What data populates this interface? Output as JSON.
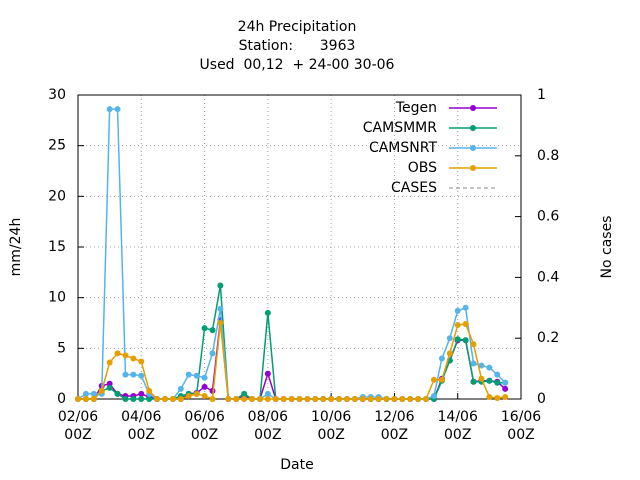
{
  "chart_data": {
    "type": "line",
    "title": [
      "24h Precipitation",
      "Station:      3963",
      "Used  00,12  + 24-00 30-06"
    ],
    "x_label": "Date",
    "y_label": "mm/24h",
    "y2_label": "No cases",
    "x": [
      "02/06\n00Z",
      "02/06\n06Z",
      "02/06\n12Z",
      "02/06\n18Z",
      "03/06\n00Z",
      "03/06\n06Z",
      "03/06\n12Z",
      "03/06\n18Z",
      "04/06\n00Z",
      "04/06\n06Z",
      "04/06\n12Z",
      "04/06\n18Z",
      "05/06\n00Z",
      "05/06\n06Z",
      "05/06\n12Z",
      "05/06\n18Z",
      "06/06\n00Z",
      "06/06\n06Z",
      "06/06\n12Z",
      "06/06\n18Z",
      "07/06\n00Z",
      "07/06\n06Z",
      "07/06\n12Z",
      "07/06\n18Z",
      "08/06\n00Z",
      "08/06\n06Z",
      "08/06\n12Z",
      "08/06\n18Z",
      "09/06\n00Z",
      "09/06\n06Z",
      "09/06\n12Z",
      "09/06\n18Z",
      "10/06\n00Z",
      "10/06\n06Z",
      "10/06\n12Z",
      "10/06\n18Z",
      "11/06\n00Z",
      "11/06\n06Z",
      "11/06\n12Z",
      "11/06\n18Z",
      "12/06\n00Z",
      "12/06\n06Z",
      "12/06\n12Z",
      "12/06\n18Z",
      "13/06\n00Z",
      "13/06\n06Z",
      "13/06\n12Z",
      "13/06\n18Z",
      "14/06\n00Z",
      "14/06\n06Z",
      "14/06\n12Z",
      "14/06\n18Z",
      "15/06\n00Z",
      "15/06\n06Z",
      "15/06\n12Z"
    ],
    "series": [
      {
        "name": "Tegen",
        "color": "#9400d3",
        "values": [
          0,
          0,
          0,
          1.3,
          1.5,
          0.5,
          0.3,
          0.3,
          0.5,
          0.2,
          0,
          0,
          0,
          0,
          0.5,
          0.6,
          1.2,
          0.8,
          7.8,
          0,
          0,
          0.3,
          0,
          0,
          2.5,
          0,
          0,
          0,
          0,
          0,
          0,
          0,
          0,
          0,
          0,
          0,
          0,
          0,
          0,
          0,
          0,
          0,
          0,
          0,
          0,
          0,
          2,
          3.8,
          5.8,
          5.8,
          1.7,
          1.8,
          1.8,
          1.7,
          1
        ]
      },
      {
        "name": "CAMSMMR",
        "color": "#009e73",
        "values": [
          0,
          0,
          0,
          0.8,
          1.1,
          0.5,
          0,
          0,
          0,
          0,
          0,
          0,
          0,
          0.3,
          0.5,
          0.5,
          7,
          6.8,
          11.2,
          0,
          0,
          0.5,
          0,
          0,
          8.5,
          0,
          0,
          0,
          0,
          0,
          0,
          0,
          0,
          0,
          0,
          0,
          0,
          0,
          0,
          0,
          0,
          0,
          0,
          0,
          0,
          0,
          1.8,
          3.8,
          5.9,
          5.8,
          1.7,
          1.7,
          1.8,
          1.6,
          1.6
        ]
      },
      {
        "name": "CAMSNRT",
        "color": "#56b4e9",
        "values": [
          0,
          0.5,
          0.5,
          0.5,
          28.6,
          28.6,
          2.4,
          2.4,
          2.3,
          0.5,
          0,
          0,
          0,
          1,
          2.4,
          2.3,
          2.1,
          4.5,
          8.9,
          0,
          0,
          0,
          0,
          0,
          0.5,
          0,
          0,
          0,
          0,
          0,
          0,
          0,
          0,
          0,
          0,
          0,
          0.2,
          0.2,
          0.2,
          0,
          0,
          0,
          0,
          0,
          0,
          0.3,
          4,
          6,
          8.7,
          9,
          3.5,
          3.3,
          3.1,
          2.4,
          1.6
        ]
      },
      {
        "name": "OBS",
        "color": "#e69f00",
        "values": [
          0,
          0,
          0,
          0.8,
          3.6,
          4.5,
          4.3,
          4,
          3.7,
          0.8,
          0,
          0,
          0,
          0,
          0.3,
          0.5,
          0.3,
          0,
          7.5,
          0,
          0,
          0,
          0,
          0,
          0,
          0,
          0,
          0,
          0,
          0,
          0,
          0,
          0,
          0,
          0,
          0,
          0,
          0,
          0,
          0,
          0,
          0,
          0,
          0,
          0,
          1.9,
          1.9,
          4.5,
          7.3,
          7.4,
          5.4,
          2,
          0.2,
          0.1,
          0.2
        ]
      },
      {
        "name": "CASES",
        "color": "#888888",
        "axis": "y2",
        "dashed": true,
        "values": [
          null,
          null,
          null,
          null,
          null,
          null,
          null,
          null,
          null,
          null,
          null,
          null,
          null,
          null,
          null,
          null,
          null,
          null,
          null,
          null,
          null,
          null,
          null,
          null,
          null,
          null,
          null,
          null,
          null,
          null,
          null,
          null,
          null,
          null,
          null,
          null,
          null,
          null,
          null,
          null,
          null,
          null,
          null,
          null,
          null,
          null,
          null,
          null,
          null,
          null,
          null,
          null,
          null,
          null,
          null
        ]
      }
    ],
    "xlim": [
      "02/06\n00Z",
      "16/06\n00Z"
    ],
    "xticks": [
      "02/06\n00Z",
      "04/06\n00Z",
      "06/06\n00Z",
      "08/06\n00Z",
      "10/06\n00Z",
      "12/06\n00Z",
      "14/06\n00Z",
      "16/06\n00Z"
    ],
    "ylim": [
      0,
      30
    ],
    "yticks": [
      0,
      5,
      10,
      15,
      20,
      25,
      30
    ],
    "y2lim": [
      0,
      1
    ],
    "y2ticks": [
      0,
      0.2,
      0.4,
      0.6,
      0.8,
      1
    ],
    "grid": true,
    "legend": "top-right"
  }
}
